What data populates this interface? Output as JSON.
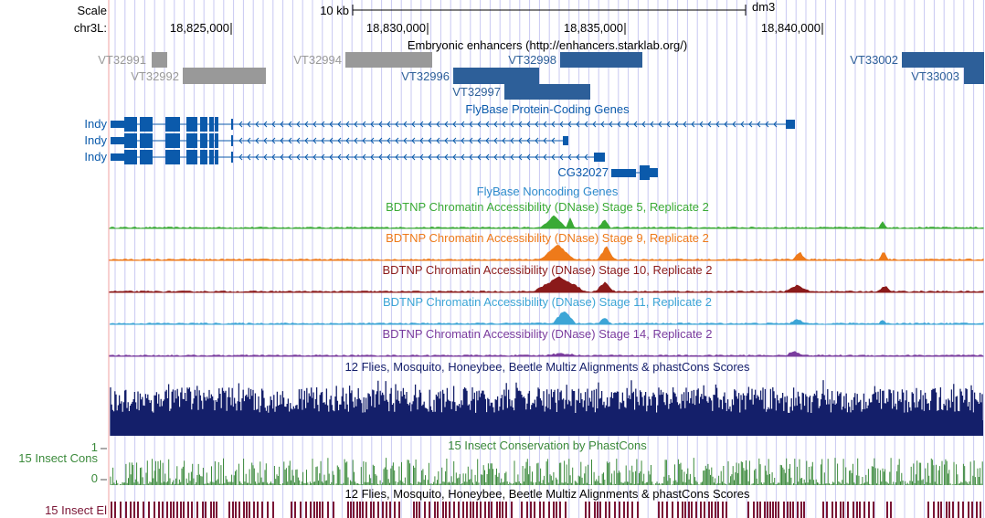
{
  "ruler": {
    "scale_label": "Scale",
    "scale_value": "10 kb",
    "assembly": "dm3",
    "chrom_label": "chr3L:",
    "positions": [
      "18,825,000",
      "18,830,000",
      "18,835,000",
      "18,840,000"
    ]
  },
  "enhancers": {
    "title": "Embryonic enhancers (http://enhancers.starklab.org/)",
    "items": [
      {
        "name": "VT32991",
        "color": "#999999"
      },
      {
        "name": "VT32992",
        "color": "#999999"
      },
      {
        "name": "VT32994",
        "color": "#999999"
      },
      {
        "name": "VT32996",
        "color": "#2d5f99"
      },
      {
        "name": "VT32997",
        "color": "#2d5f99"
      },
      {
        "name": "VT32998",
        "color": "#2d5f99"
      },
      {
        "name": "VT33002",
        "color": "#2d5f99"
      },
      {
        "name": "VT33003",
        "color": "#2d5f99"
      }
    ]
  },
  "genes": {
    "title": "FlyBase Protein-Coding Genes",
    "color": "#0b5aab",
    "items": [
      {
        "name": "Indy"
      },
      {
        "name": "Indy"
      },
      {
        "name": "Indy"
      },
      {
        "name": "CG32027"
      }
    ]
  },
  "noncoding": {
    "title": "FlyBase Noncoding Genes",
    "color": "#2e8bcc"
  },
  "dnase": [
    {
      "title": "BDTNP Chromatin Accessibility (DNase) Stage 5, Replicate 2",
      "color": "#3aaa35"
    },
    {
      "title": "BDTNP Chromatin Accessibility (DNase) Stage 9, Replicate 2",
      "color": "#ee7a1a"
    },
    {
      "title": "BDTNP Chromatin Accessibility (DNase) Stage 10, Replicate 2",
      "color": "#8b1a1a"
    },
    {
      "title": "BDTNP Chromatin Accessibility (DNase) Stage 11, Replicate 2",
      "color": "#3ca5d6"
    },
    {
      "title": "BDTNP Chromatin Accessibility (DNase) Stage 14, Replicate 2",
      "color": "#7a3c9e"
    }
  ],
  "multiz": {
    "title": "12 Flies, Mosquito, Honeybee, Beetle Multiz Alignments & phastCons Scores",
    "color": "#141f6a"
  },
  "phastcons": {
    "title": "15 Insect Conservation by PhastCons",
    "side_label": "15 Insect Cons",
    "max_label": "1",
    "min_label": "0",
    "color": "#3b8a3b"
  },
  "elements": {
    "title": "12 Flies, Mosquito, Honeybee, Beetle Multiz Alignments & phastCons Scores",
    "side_label": "15 Insect El",
    "color": "#7a1535"
  },
  "colors": {
    "grid": "#c8c8f2",
    "left_border": "#f0a0a0",
    "ruler": "#000000"
  }
}
